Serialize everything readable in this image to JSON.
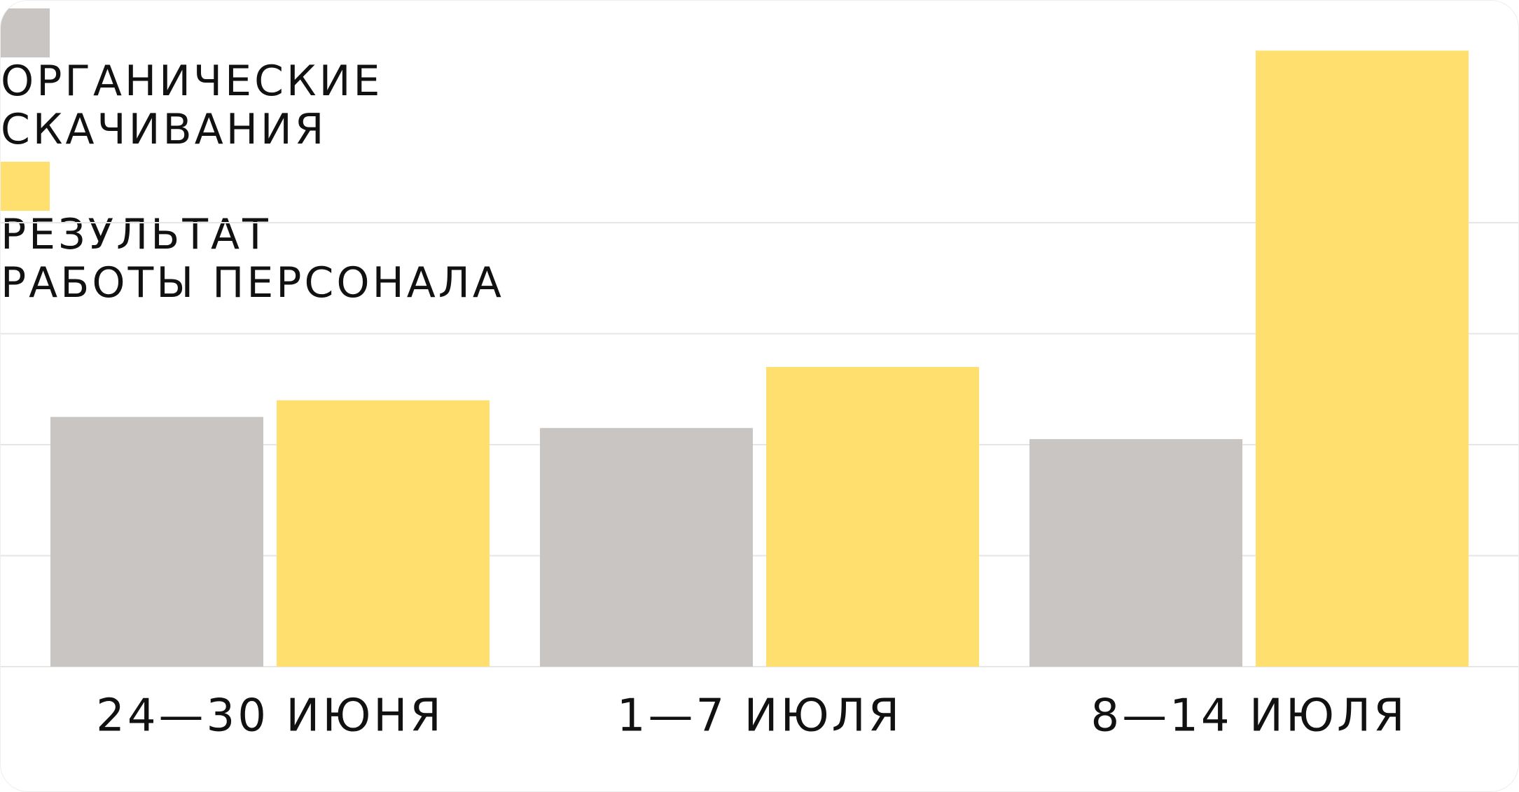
{
  "chart_data": {
    "type": "bar",
    "categories": [
      "24—30 ИЮНЯ",
      "1—7 ИЮЛЯ",
      "8—14 ИЮЛЯ"
    ],
    "series": [
      {
        "name": "ОРГАНИЧЕСКИЕ\nСКАЧИВАНИЯ",
        "color": "#c9c5c2",
        "values": [
          2.25,
          2.15,
          2.05
        ]
      },
      {
        "name": "РЕЗУЛЬТАТ\nРАБОТЫ ПЕРСОНАЛА",
        "color": "#ffdf6e",
        "values": [
          2.4,
          2.7,
          5.55
        ]
      }
    ],
    "ylim": [
      0,
      6
    ],
    "gridlines": [
      0,
      1,
      2,
      3,
      4
    ],
    "grid": true,
    "legend": "top-left"
  }
}
